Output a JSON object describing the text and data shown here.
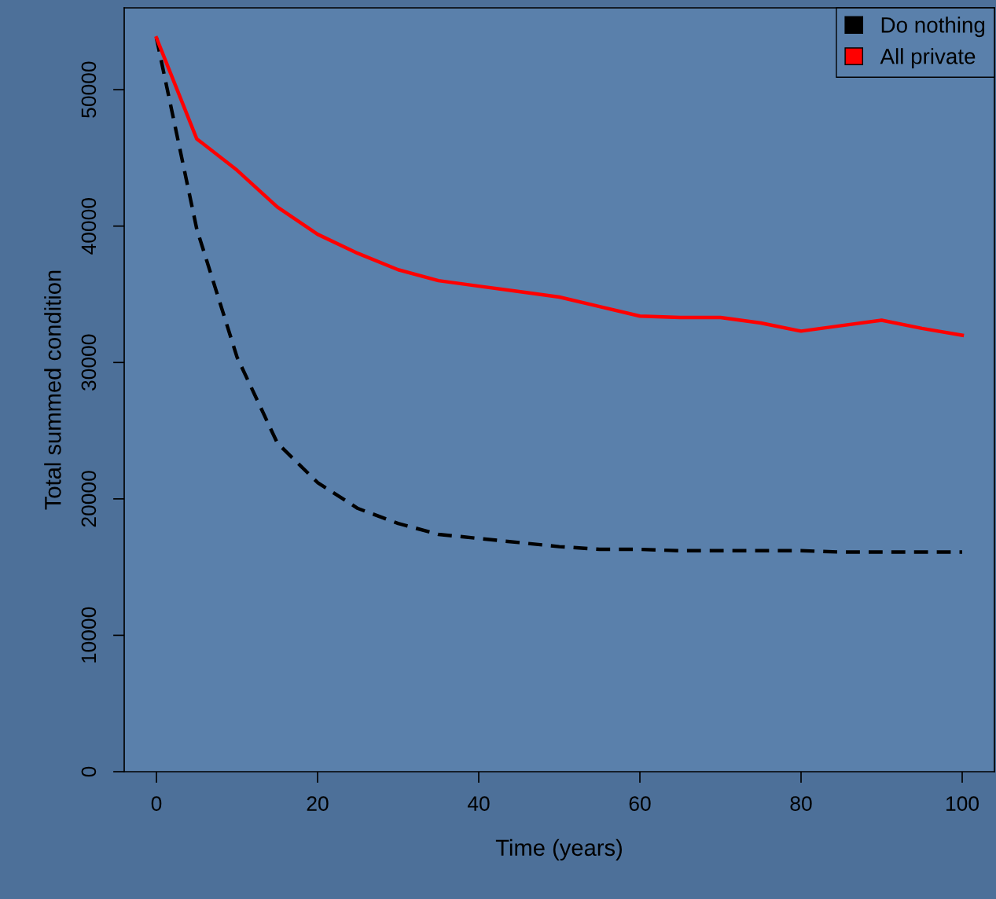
{
  "chart_data": {
    "type": "line",
    "xlabel": "Time (years)",
    "ylabel": "Total summed condition",
    "x": [
      0,
      5,
      10,
      15,
      20,
      25,
      30,
      35,
      40,
      45,
      50,
      55,
      60,
      65,
      70,
      75,
      80,
      85,
      90,
      95,
      100
    ],
    "series": [
      {
        "name": "Do nothing",
        "color": "#000000",
        "line_style": "dashed",
        "values": [
          53800,
          39800,
          30400,
          24100,
          21200,
          19300,
          18200,
          17400,
          17100,
          16800,
          16500,
          16300,
          16300,
          16200,
          16200,
          16200,
          16200,
          16100,
          16100,
          16100,
          16100
        ]
      },
      {
        "name": "All private",
        "color": "#ff0000",
        "line_style": "solid",
        "values": [
          53800,
          46400,
          44100,
          41400,
          39400,
          38000,
          36800,
          36000,
          35600,
          35200,
          34800,
          34100,
          33400,
          33300,
          33300,
          32900,
          32300,
          32700,
          33100,
          32500,
          32000
        ]
      }
    ],
    "xlim": [
      -4,
      104
    ],
    "ylim": [
      0,
      56000
    ],
    "xticks": [
      0,
      20,
      40,
      60,
      80,
      100
    ],
    "yticks": [
      0,
      10000,
      20000,
      30000,
      40000,
      50000
    ],
    "grid": false,
    "legend": "top right",
    "marker": "none"
  }
}
